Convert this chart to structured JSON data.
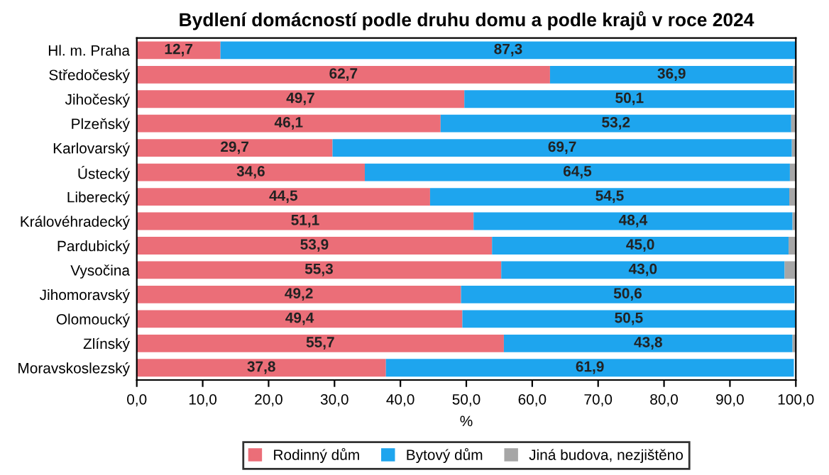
{
  "chart_data": {
    "type": "bar",
    "orientation": "horizontal",
    "stacked": true,
    "title": "Bydlení domácností podle druhu domu a podle krajů v roce 2024",
    "xlabel": "%",
    "categories": [
      "Hl. m. Praha",
      "Středočeský",
      "Jihočeský",
      "Plzeňský",
      "Karlovarský",
      "Ústecký",
      "Liberecký",
      "Královéhradecký",
      "Pardubický",
      "Vysočina",
      "Jihomoravský",
      "Olomoucký",
      "Zlínský",
      "Moravskoslezský"
    ],
    "series": [
      {
        "name": "Rodinný dům",
        "color": "#eb6e78",
        "values": [
          12.7,
          62.7,
          49.7,
          46.1,
          29.7,
          34.6,
          44.5,
          51.1,
          53.9,
          55.3,
          49.2,
          49.4,
          55.7,
          37.8
        ],
        "value_labels": [
          "12,7",
          "62,7",
          "49,7",
          "46,1",
          "29,7",
          "34,6",
          "44,5",
          "51,1",
          "53,9",
          "55,3",
          "49,2",
          "49,4",
          "55,7",
          "37,8"
        ]
      },
      {
        "name": "Bytový dům",
        "color": "#1ea5ee",
        "values": [
          87.3,
          36.9,
          50.1,
          53.2,
          69.7,
          64.5,
          54.5,
          48.4,
          45.0,
          43.0,
          50.6,
          50.5,
          43.8,
          61.9
        ],
        "value_labels": [
          "87,3",
          "36,9",
          "50,1",
          "53,2",
          "69,7",
          "64,5",
          "54,5",
          "48,4",
          "45,0",
          "43,0",
          "50,6",
          "50,5",
          "43,8",
          "61,9"
        ]
      },
      {
        "name": "Jiná budova, nezjištěno",
        "color": "#a6a6a6",
        "values": [
          0,
          0.4,
          null,
          0.7,
          0.6,
          0.9,
          1.0,
          0.5,
          1.1,
          1.7,
          null,
          null,
          0.5,
          null
        ]
      }
    ],
    "xlim": [
      0,
      100
    ],
    "xticks": [
      {
        "value": 0,
        "label": "0,0"
      },
      {
        "value": 10,
        "label": "10,0"
      },
      {
        "value": 20,
        "label": "20,0"
      },
      {
        "value": 30,
        "label": "30,0"
      },
      {
        "value": 40,
        "label": "40,0"
      },
      {
        "value": 50,
        "label": "50,0"
      },
      {
        "value": 60,
        "label": "60,0"
      },
      {
        "value": 70,
        "label": "70,0"
      },
      {
        "value": 80,
        "label": "80,0"
      },
      {
        "value": 90,
        "label": "90,0"
      },
      {
        "value": 100,
        "label": "100,0"
      }
    ],
    "grid": false,
    "legend": "bottom"
  }
}
